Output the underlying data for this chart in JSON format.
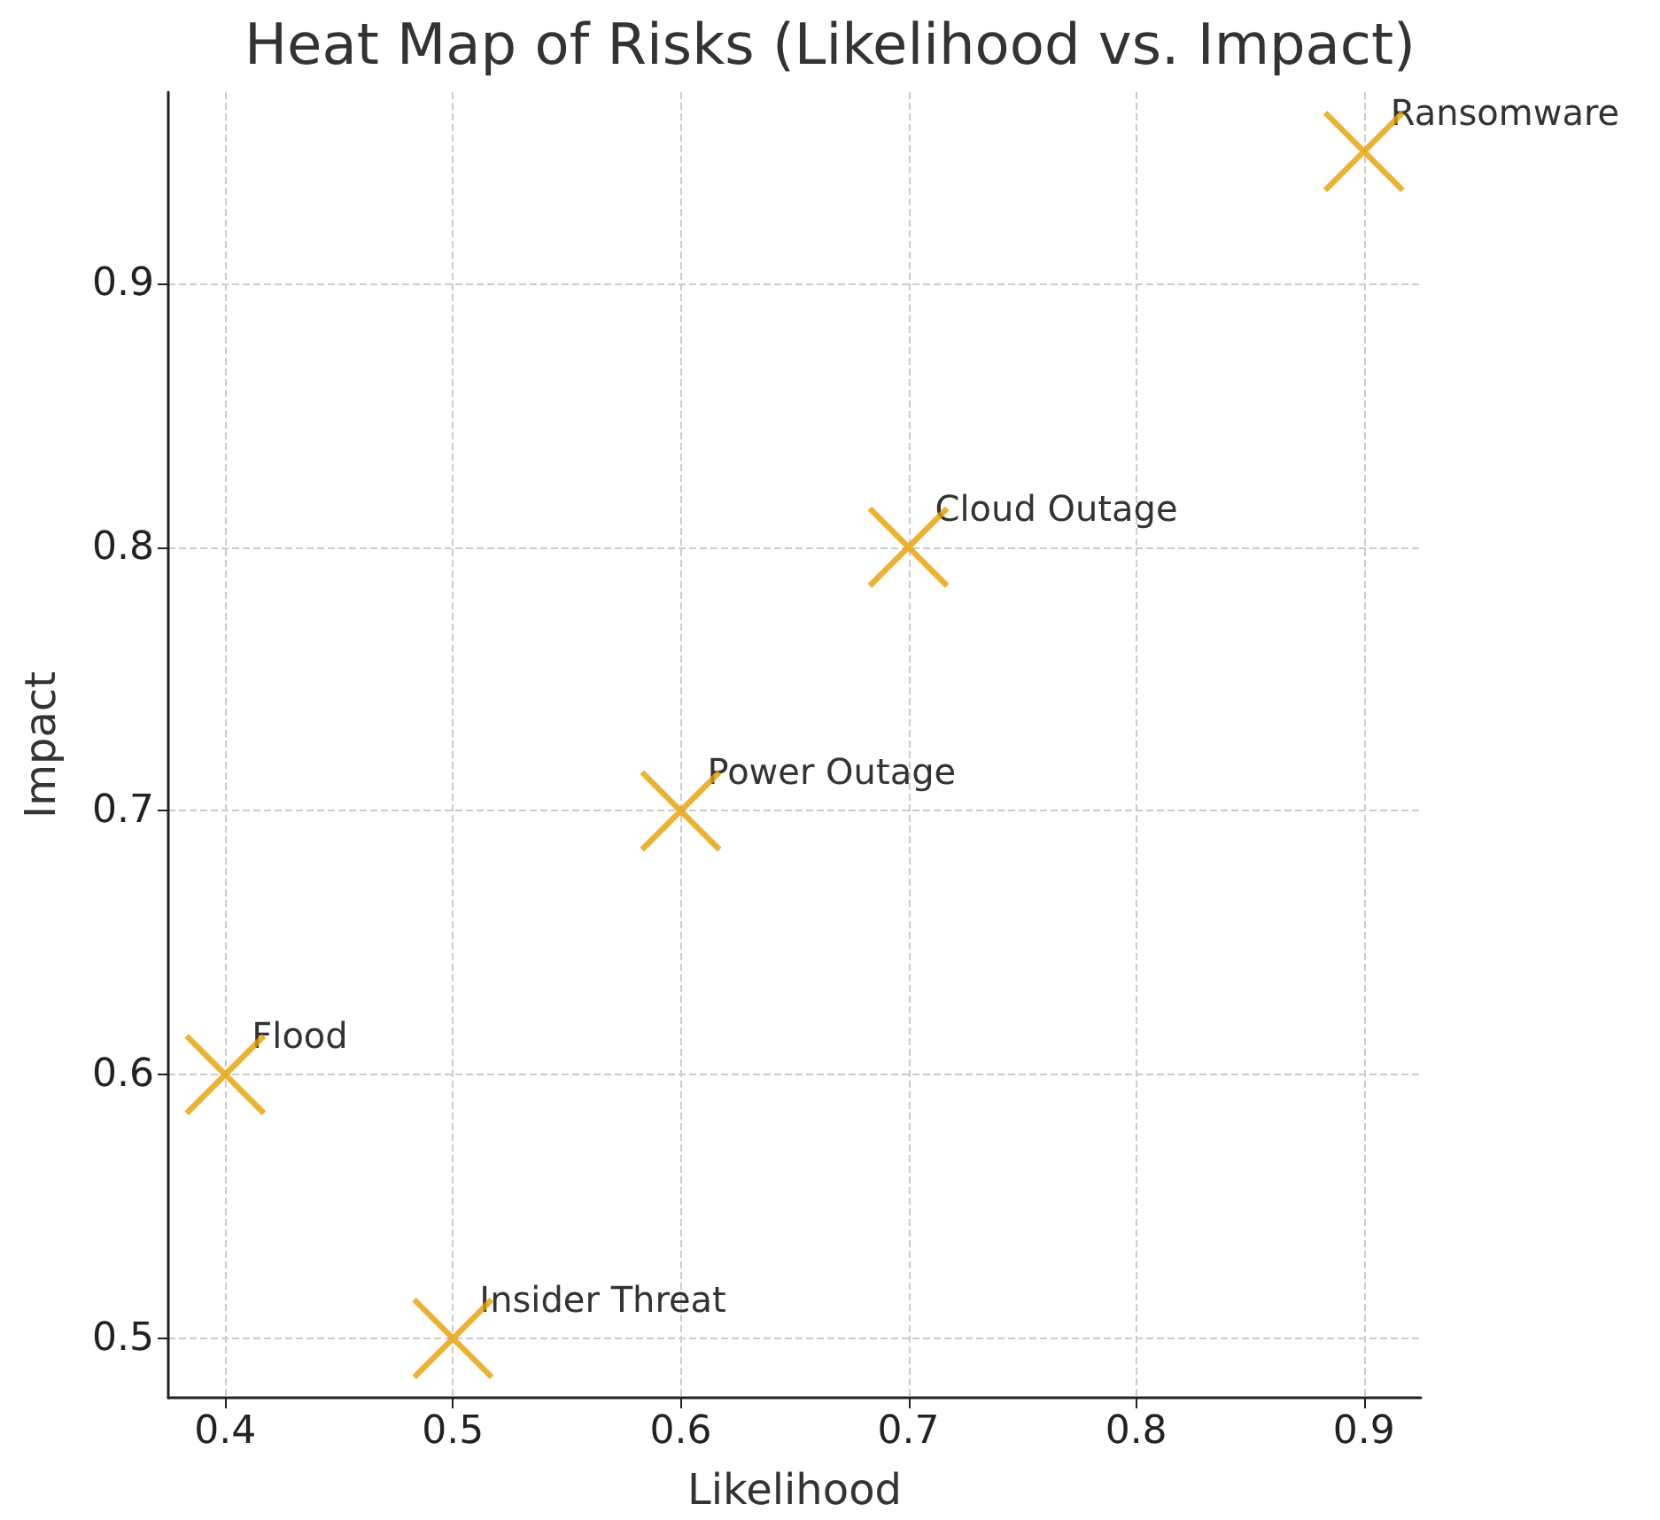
{
  "chart_data": {
    "type": "scatter",
    "title": "Heat Map of Risks (Likelihood vs. Impact)",
    "xlabel": "Likelihood",
    "ylabel": "Impact",
    "x": [
      0.4,
      0.5,
      0.6,
      0.7,
      0.9
    ],
    "series": [
      {
        "color": "#e69f00",
        "values": [
          0.6,
          0.5,
          0.7,
          0.8,
          0.95
        ]
      }
    ],
    "annotations": [
      {
        "text": "Flood",
        "x": 0.4,
        "y": 0.6
      },
      {
        "text": "Insider Threat",
        "x": 0.5,
        "y": 0.5
      },
      {
        "text": "Power Outage",
        "x": 0.6,
        "y": 0.7
      },
      {
        "text": "Cloud Outage",
        "x": 0.7,
        "y": 0.8
      },
      {
        "text": "Ransomware",
        "x": 0.9,
        "y": 0.95
      }
    ],
    "xlim": [
      0.375,
      0.925
    ],
    "ylim": [
      0.4775,
      0.9725
    ],
    "xticks": [
      0.4,
      0.5,
      0.6,
      0.7,
      0.8,
      0.9
    ],
    "yticks": [
      0.5,
      0.6,
      0.7,
      0.8,
      0.9
    ],
    "marker": "cross",
    "grid": true
  }
}
